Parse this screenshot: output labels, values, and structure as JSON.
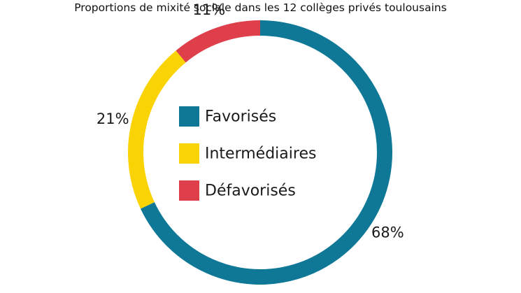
{
  "chart_data": {
    "type": "pie",
    "variant": "donut",
    "title": "Proportions de mixité sociale dans les 12 collèges privés toulousains",
    "categories": [
      "Favorisés",
      "Intermédiaires",
      "Défavorisés"
    ],
    "values": [
      68,
      21,
      11
    ],
    "value_labels": [
      "68%",
      "21%",
      "11%"
    ],
    "colors": [
      "#0F7896",
      "#F9D304",
      "#DF3F4A"
    ],
    "start": "top",
    "direction": "clockwise",
    "legend_position": "center"
  }
}
